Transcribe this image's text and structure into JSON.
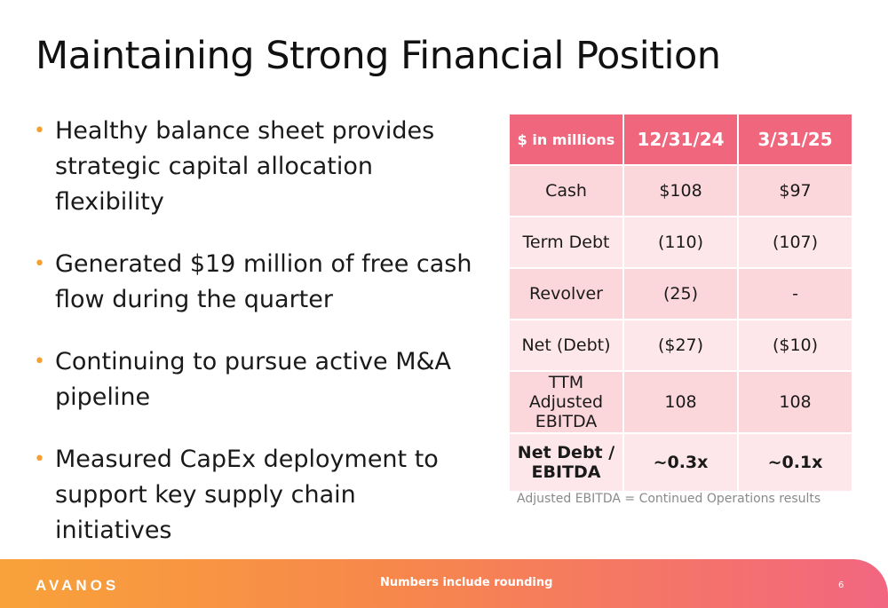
{
  "title": "Maintaining Strong Financial Position",
  "bullets": [
    "Healthy balance sheet provides strategic capital allocation flexibility",
    "Generated $19 million of free cash flow during the quarter",
    "Continuing to pursue active M&A pipeline",
    "Measured CapEx deployment to support key supply chain initiatives"
  ],
  "bullet_marker": "•",
  "table": {
    "headers": [
      "$ in millions",
      "12/31/24",
      "3/31/25"
    ],
    "rows": [
      [
        "Cash",
        "$108",
        "$97"
      ],
      [
        "Term Debt",
        "(110)",
        "(107)"
      ],
      [
        "Revolver",
        "(25)",
        "-"
      ],
      [
        "Net (Debt)",
        "($27)",
        "($10)"
      ],
      [
        "TTM Adjusted EBITDA",
        "108",
        "108"
      ],
      [
        "Net Debt / EBITDA",
        "~0.3x",
        "~0.1x"
      ]
    ]
  },
  "footnote": "Adjusted EBITDA = Continued Operations results",
  "footer": {
    "logo": "AVANOS",
    "note": "Numbers include rounding",
    "page_number": "6"
  },
  "colors": {
    "header_fill": "#f0667d",
    "row_fill_dark": "#fbd6db",
    "row_fill_light": "#fde7ea",
    "bullet_accent": "#f4a034",
    "footer_gradient_start": "#f8a23a",
    "footer_gradient_end": "#f26680"
  }
}
